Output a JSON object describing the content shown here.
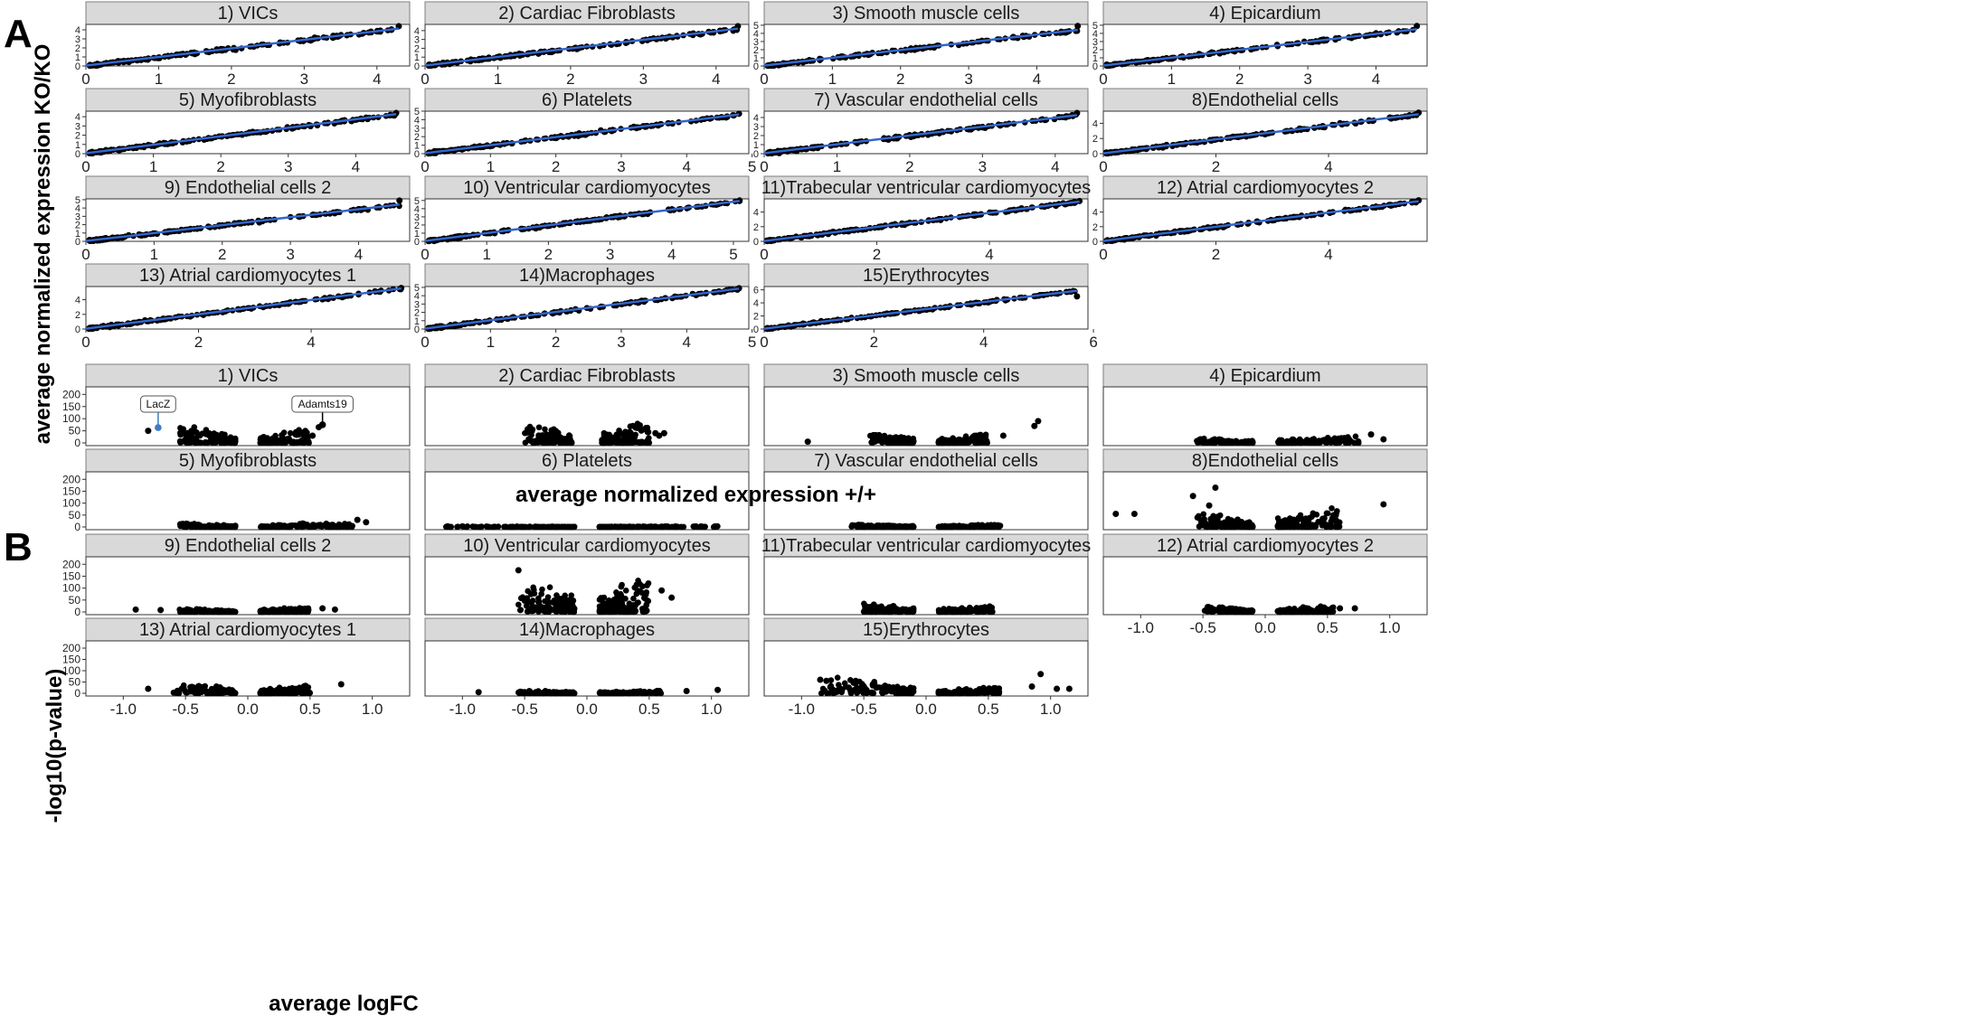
{
  "figure": {
    "panel_a_letter": "A",
    "panel_b_letter": "B",
    "panel_a_xlabel": "average normalized expression +/+",
    "panel_a_ylabel": "average normalized expression KO/KO",
    "panel_b_xlabel": "average logFC",
    "panel_b_ylabel": "-log10(p-value)"
  },
  "chart_data": [
    {
      "type": "scatter",
      "panel": "A",
      "description_of_marks": "scatter of per-gene average normalized expression with blue linear fit",
      "point_color": "#000000",
      "fit_color": "#3366cc",
      "facets": [
        {
          "title": "1) VICs",
          "xlim": [
            0,
            4.45
          ],
          "ylim": [
            0,
            4.6
          ],
          "xticks": [
            0,
            1,
            2,
            3,
            4
          ],
          "yticks": [
            0,
            1,
            2,
            3,
            4
          ],
          "xmax": 4.3,
          "ymax": 4.4,
          "slope": 0.95
        },
        {
          "title": "2) Cardiac Fibroblasts",
          "xlim": [
            0,
            4.45
          ],
          "ylim": [
            0,
            4.7
          ],
          "xticks": [
            0,
            1,
            2,
            3,
            4
          ],
          "yticks": [
            0,
            1,
            2,
            3,
            4
          ],
          "xmax": 4.3,
          "ymax": 4.5,
          "slope": 0.97
        },
        {
          "title": "3) Smooth muscle cells",
          "xlim": [
            0,
            4.75
          ],
          "ylim": [
            0,
            5.1
          ],
          "xticks": [
            0,
            1,
            2,
            3,
            4
          ],
          "yticks": [
            0,
            1,
            2,
            3,
            4,
            5
          ],
          "xmax": 4.6,
          "ymax": 4.9,
          "slope": 0.95
        },
        {
          "title": "4) Epicardium",
          "xlim": [
            0,
            4.75
          ],
          "ylim": [
            0,
            5.1
          ],
          "xticks": [
            0,
            1,
            2,
            3,
            4
          ],
          "yticks": [
            0,
            1,
            2,
            3,
            4,
            5
          ],
          "xmax": 4.6,
          "ymax": 4.9,
          "slope": 0.97
        },
        {
          "title": "5) Myofibroblasts",
          "xlim": [
            0,
            4.8
          ],
          "ylim": [
            0,
            4.6
          ],
          "xticks": [
            0,
            1,
            2,
            3,
            4
          ],
          "yticks": [
            0,
            1,
            2,
            3,
            4
          ],
          "xmax": 4.6,
          "ymax": 4.4,
          "slope": 0.92
        },
        {
          "title": "6) Platelets",
          "xlim": [
            0,
            4.95
          ],
          "ylim": [
            0,
            5.0
          ],
          "xticks": [
            0,
            1,
            2,
            3,
            4,
            5
          ],
          "yticks": [
            0,
            1,
            2,
            3,
            4,
            5
          ],
          "xmax": 4.8,
          "ymax": 4.7,
          "slope": 0.95
        },
        {
          "title": "7) Vascular endothelial cells",
          "xlim": [
            0,
            4.45
          ],
          "ylim": [
            0,
            4.7
          ],
          "xticks": [
            0,
            1,
            2,
            3,
            4
          ],
          "yticks": [
            0,
            1,
            2,
            3,
            4
          ],
          "xmax": 4.3,
          "ymax": 4.5,
          "slope": 0.98
        },
        {
          "title": "8)Endothelial cells",
          "xlim": [
            0,
            5.75
          ],
          "ylim": [
            0,
            5.6
          ],
          "xticks": [
            0,
            2,
            4
          ],
          "yticks": [
            0,
            2,
            4
          ],
          "xmax": 5.6,
          "ymax": 5.4,
          "slope": 0.92
        },
        {
          "title": "9) Endothelial cells 2",
          "xlim": [
            0,
            4.75
          ],
          "ylim": [
            0,
            5.1
          ],
          "xticks": [
            0,
            1,
            2,
            3,
            4
          ],
          "yticks": [
            0,
            1,
            2,
            3,
            4,
            5
          ],
          "xmax": 4.6,
          "ymax": 4.9,
          "slope": 0.95
        },
        {
          "title": "10) Ventricular cardiomyocytes",
          "xlim": [
            0,
            5.25
          ],
          "ylim": [
            0,
            5.2
          ],
          "xticks": [
            0,
            1,
            2,
            3,
            4,
            5
          ],
          "yticks": [
            0,
            1,
            2,
            3,
            4,
            5
          ],
          "xmax": 5.1,
          "ymax": 5.0,
          "slope": 0.96
        },
        {
          "title": "11)Trabecular ventricular cardiomyocytes",
          "xlim": [
            0,
            5.75
          ],
          "ylim": [
            0,
            5.8
          ],
          "xticks": [
            0,
            2,
            4
          ],
          "yticks": [
            0,
            2,
            4
          ],
          "xmax": 5.6,
          "ymax": 5.5,
          "slope": 0.96
        },
        {
          "title": "12) Atrial cardiomyocytes 2",
          "xlim": [
            0,
            5.75
          ],
          "ylim": [
            0,
            5.8
          ],
          "xticks": [
            0,
            2,
            4
          ],
          "yticks": [
            0,
            2,
            4
          ],
          "xmax": 5.6,
          "ymax": 5.6,
          "slope": 0.97
        },
        {
          "title": "13) Atrial cardiomyocytes 1",
          "xlim": [
            0,
            5.75
          ],
          "ylim": [
            0,
            5.8
          ],
          "xticks": [
            0,
            2,
            4
          ],
          "yticks": [
            0,
            2,
            4
          ],
          "xmax": 5.6,
          "ymax": 5.6,
          "slope": 0.98
        },
        {
          "title": "14)Macrophages",
          "xlim": [
            0,
            4.95
          ],
          "ylim": [
            0,
            5.1
          ],
          "xticks": [
            0,
            1,
            2,
            3,
            4,
            5
          ],
          "yticks": [
            0,
            1,
            2,
            3,
            4,
            5
          ],
          "xmax": 4.8,
          "ymax": 4.9,
          "slope": 1.0
        },
        {
          "title": "15)Erythrocytes",
          "xlim": [
            0,
            5.9
          ],
          "ylim": [
            0,
            6.5
          ],
          "xticks": [
            0,
            2,
            4,
            6
          ],
          "yticks": [
            0,
            2,
            4,
            6
          ],
          "xmax": 5.7,
          "ymax": 5.0,
          "slope": 1.02
        }
      ]
    },
    {
      "type": "scatter",
      "panel": "B",
      "description_of_marks": "volcano-style scatter of average logFC vs -log10(p-value)",
      "point_color": "#000000",
      "xlim": [
        -1.3,
        1.3
      ],
      "ylim": [
        0,
        220
      ],
      "xticks": [
        -1.0,
        -0.5,
        0.0,
        0.5,
        1.0
      ],
      "yticks": [
        0,
        50,
        100,
        150,
        200
      ],
      "facets": [
        {
          "title": "1) VICs",
          "neg": [
            -0.55,
            -0.1
          ],
          "pos": [
            0.1,
            0.5
          ],
          "ymaxNeg": 75,
          "ymaxPos": 55,
          "outliers": [
            [
              -0.8,
              50
            ],
            [
              0.6,
              75
            ],
            [
              0.57,
              65
            ],
            [
              0.52,
              30
            ]
          ],
          "labels": [
            {
              "text": "LacZ",
              "x": -0.72,
              "y": 63,
              "color": "#3b7cc4"
            },
            {
              "text": "Adamts19",
              "x": 0.6,
              "y": 75,
              "color": "#000000"
            }
          ]
        },
        {
          "title": "2) Cardiac Fibroblasts",
          "neg": [
            -0.5,
            -0.12
          ],
          "pos": [
            0.12,
            0.5
          ],
          "ymaxNeg": 75,
          "ymaxPos": 80,
          "outliers": [
            [
              0.55,
              40
            ],
            [
              0.62,
              40
            ],
            [
              0.58,
              30
            ]
          ],
          "labels": []
        },
        {
          "title": "3) Smooth muscle cells",
          "neg": [
            -0.45,
            -0.1
          ],
          "pos": [
            0.1,
            0.5
          ],
          "ymaxNeg": 40,
          "ymaxPos": 35,
          "outliers": [
            [
              -0.95,
              5
            ],
            [
              0.62,
              30
            ],
            [
              0.9,
              90
            ],
            [
              0.87,
              70
            ]
          ],
          "labels": []
        },
        {
          "title": "4) Epicardium",
          "neg": [
            -0.55,
            -0.1
          ],
          "pos": [
            0.1,
            0.75
          ],
          "ymaxNeg": 20,
          "ymaxPos": 28,
          "outliers": [
            [
              0.85,
              35
            ],
            [
              0.95,
              15
            ]
          ],
          "labels": []
        },
        {
          "title": "5) Myofibroblasts",
          "neg": [
            -0.55,
            -0.1
          ],
          "pos": [
            0.1,
            0.85
          ],
          "ymaxNeg": 15,
          "ymaxPos": 20,
          "outliers": [
            [
              0.95,
              20
            ],
            [
              0.88,
              30
            ]
          ],
          "labels": []
        },
        {
          "title": "6) Platelets",
          "neg": [
            -1.15,
            -0.1
          ],
          "pos": [
            0.1,
            1.05
          ],
          "ymaxNeg": 4,
          "ymaxPos": 4,
          "outliers": [],
          "labels": []
        },
        {
          "title": "7) Vascular endothelial cells",
          "neg": [
            -0.6,
            -0.1
          ],
          "pos": [
            0.1,
            0.6
          ],
          "ymaxNeg": 10,
          "ymaxPos": 10,
          "outliers": [],
          "labels": []
        },
        {
          "title": "8)Endothelial cells",
          "neg": [
            -0.55,
            -0.1
          ],
          "pos": [
            0.1,
            0.6
          ],
          "ymaxNeg": 60,
          "ymaxPos": 80,
          "outliers": [
            [
              -1.2,
              55
            ],
            [
              -1.05,
              55
            ],
            [
              -0.58,
              130
            ],
            [
              -0.4,
              165
            ],
            [
              -0.45,
              90
            ],
            [
              0.95,
              95
            ]
          ],
          "labels": []
        },
        {
          "title": "9) Endothelial cells 2",
          "neg": [
            -0.55,
            -0.1
          ],
          "pos": [
            0.1,
            0.5
          ],
          "ymaxNeg": 12,
          "ymaxPos": 20,
          "outliers": [
            [
              -0.9,
              10
            ],
            [
              -0.7,
              8
            ],
            [
              0.6,
              15
            ],
            [
              0.7,
              10
            ]
          ],
          "labels": []
        },
        {
          "title": "10) Ventricular cardiomyocytes",
          "neg": [
            -0.55,
            -0.1
          ],
          "pos": [
            0.1,
            0.5
          ],
          "ymaxNeg": 140,
          "ymaxPos": 140,
          "outliers": [
            [
              -0.55,
              175
            ],
            [
              0.6,
              90
            ],
            [
              0.68,
              60
            ]
          ],
          "labels": []
        },
        {
          "title": "11)Trabecular ventricular cardiomyocytes",
          "neg": [
            -0.5,
            -0.1
          ],
          "pos": [
            0.1,
            0.55
          ],
          "ymaxNeg": 35,
          "ymaxPos": 25,
          "outliers": [],
          "labels": []
        },
        {
          "title": "12) Atrial cardiomyocytes 2",
          "neg": [
            -0.5,
            -0.1
          ],
          "pos": [
            0.1,
            0.55
          ],
          "ymaxNeg": 25,
          "ymaxPos": 25,
          "outliers": [
            [
              0.6,
              15
            ],
            [
              0.72,
              15
            ]
          ],
          "labels": []
        },
        {
          "title": "13) Atrial cardiomyocytes 1",
          "neg": [
            -0.6,
            -0.1
          ],
          "pos": [
            0.1,
            0.5
          ],
          "ymaxNeg": 45,
          "ymaxPos": 35,
          "outliers": [
            [
              -0.8,
              20
            ],
            [
              0.75,
              40
            ]
          ],
          "labels": []
        },
        {
          "title": "14)Macrophages",
          "neg": [
            -0.55,
            -0.1
          ],
          "pos": [
            0.1,
            0.6
          ],
          "ymaxNeg": 12,
          "ymaxPos": 12,
          "outliers": [
            [
              -0.87,
              5
            ],
            [
              0.8,
              10
            ],
            [
              1.05,
              15
            ]
          ],
          "labels": []
        },
        {
          "title": "15)Erythrocytes",
          "neg": [
            -0.85,
            -0.1
          ],
          "pos": [
            0.1,
            0.6
          ],
          "ymaxNeg": 70,
          "ymaxPos": 25,
          "outliers": [
            [
              -0.85,
              60
            ],
            [
              -0.8,
              55
            ],
            [
              0.85,
              30
            ],
            [
              0.92,
              85
            ],
            [
              1.05,
              20
            ],
            [
              1.15,
              20
            ]
          ],
          "labels": []
        }
      ]
    }
  ]
}
